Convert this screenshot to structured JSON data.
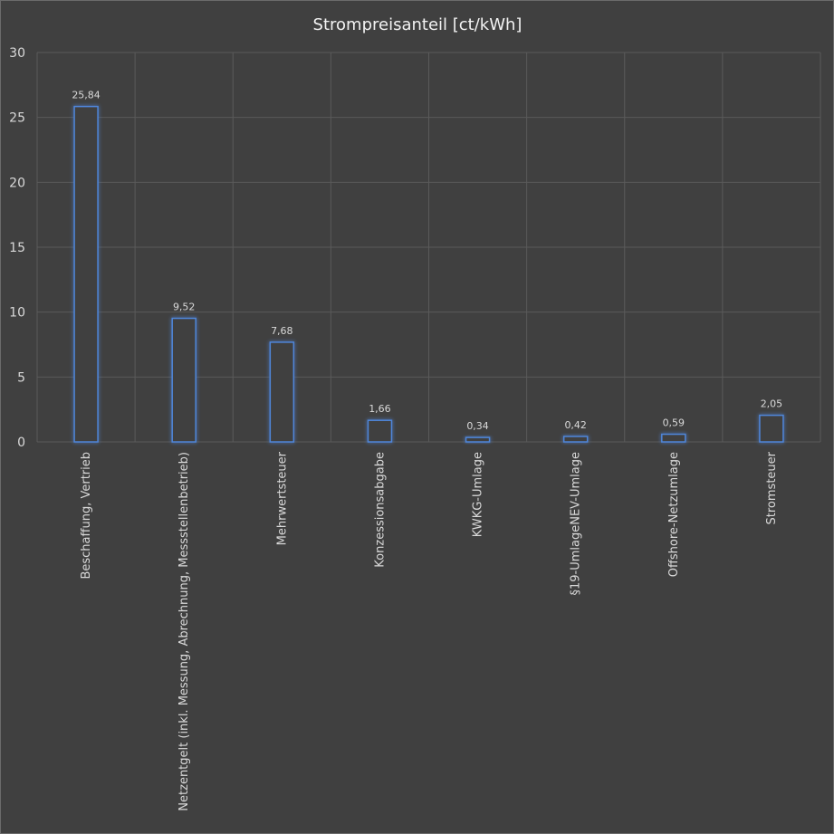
{
  "chart_data": {
    "type": "bar",
    "title": "Strompreisanteil  [ct/kWh]",
    "xlabel": "",
    "ylabel": "",
    "categories": [
      "Beschaffung, Vertrieb",
      "Netzentgelt (inkl. Messung, Abrechnung, Messstellenbetrieb)",
      "Mehrwertsteuer",
      "Konzessionsabgabe",
      "KWKG-Umlage",
      "§19-UmlageNEV-Umlage",
      "Offshore-Netzumlage",
      "Stromsteuer"
    ],
    "values": [
      25.84,
      9.52,
      7.68,
      1.66,
      0.34,
      0.42,
      0.59,
      2.05
    ],
    "data_labels": [
      "25,84",
      "9,52",
      "7,68",
      "1,66",
      "0,34",
      "0,42",
      "0,59",
      "2,05"
    ],
    "ylim": [
      0,
      30
    ],
    "yticks": [
      0,
      5,
      10,
      15,
      20,
      25,
      30
    ],
    "grid": true,
    "legend": "none",
    "colors": {
      "background": "#404040",
      "bar_outline": "#4f86d9",
      "bar_glow": "#2f6fd0",
      "grid": "#5a5a5a",
      "text": "#d9d9d9",
      "title": "#f2f2f2"
    }
  }
}
